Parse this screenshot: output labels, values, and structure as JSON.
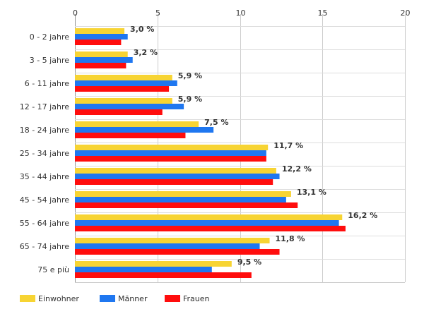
{
  "chart_data": {
    "type": "bar",
    "orientation": "horizontal",
    "title": "",
    "xlabel": "",
    "ylabel": "",
    "xlim": [
      0,
      20
    ],
    "x_ticks": [
      "0",
      "5",
      "10",
      "15",
      "20"
    ],
    "grid": true,
    "legend_position": "bottom-left",
    "categories": [
      "0 - 2 jahre",
      "3 - 5 jahre",
      "6 - 11 jahre",
      "12 - 17 jahre",
      "18 - 24 jahre",
      "25 - 34 jahre",
      "35 - 44 jahre",
      "45 - 54 jahre",
      "55 - 64 jahre",
      "65 - 74 jahre",
      "75 e più"
    ],
    "series": [
      {
        "name": "Einwohner",
        "color": "#f7d433",
        "values": [
          3.0,
          3.2,
          5.9,
          5.9,
          7.5,
          11.7,
          12.2,
          13.1,
          16.2,
          11.8,
          9.5
        ]
      },
      {
        "name": "Männer",
        "color": "#1f77f0",
        "values": [
          3.2,
          3.5,
          6.2,
          6.6,
          8.4,
          11.6,
          12.4,
          12.8,
          16.0,
          11.2,
          8.3
        ]
      },
      {
        "name": "Frauen",
        "color": "#ff0d0d",
        "values": [
          2.8,
          3.1,
          5.7,
          5.3,
          6.7,
          11.6,
          12.0,
          13.5,
          16.4,
          12.4,
          10.7
        ]
      }
    ],
    "data_labels": [
      "3,0 %",
      "3,2 %",
      "5,9 %",
      "5,9 %",
      "7,5 %",
      "11,7 %",
      "12,2 %",
      "13,1 %",
      "16,2 %",
      "11,8 %",
      "9,5 %"
    ]
  }
}
